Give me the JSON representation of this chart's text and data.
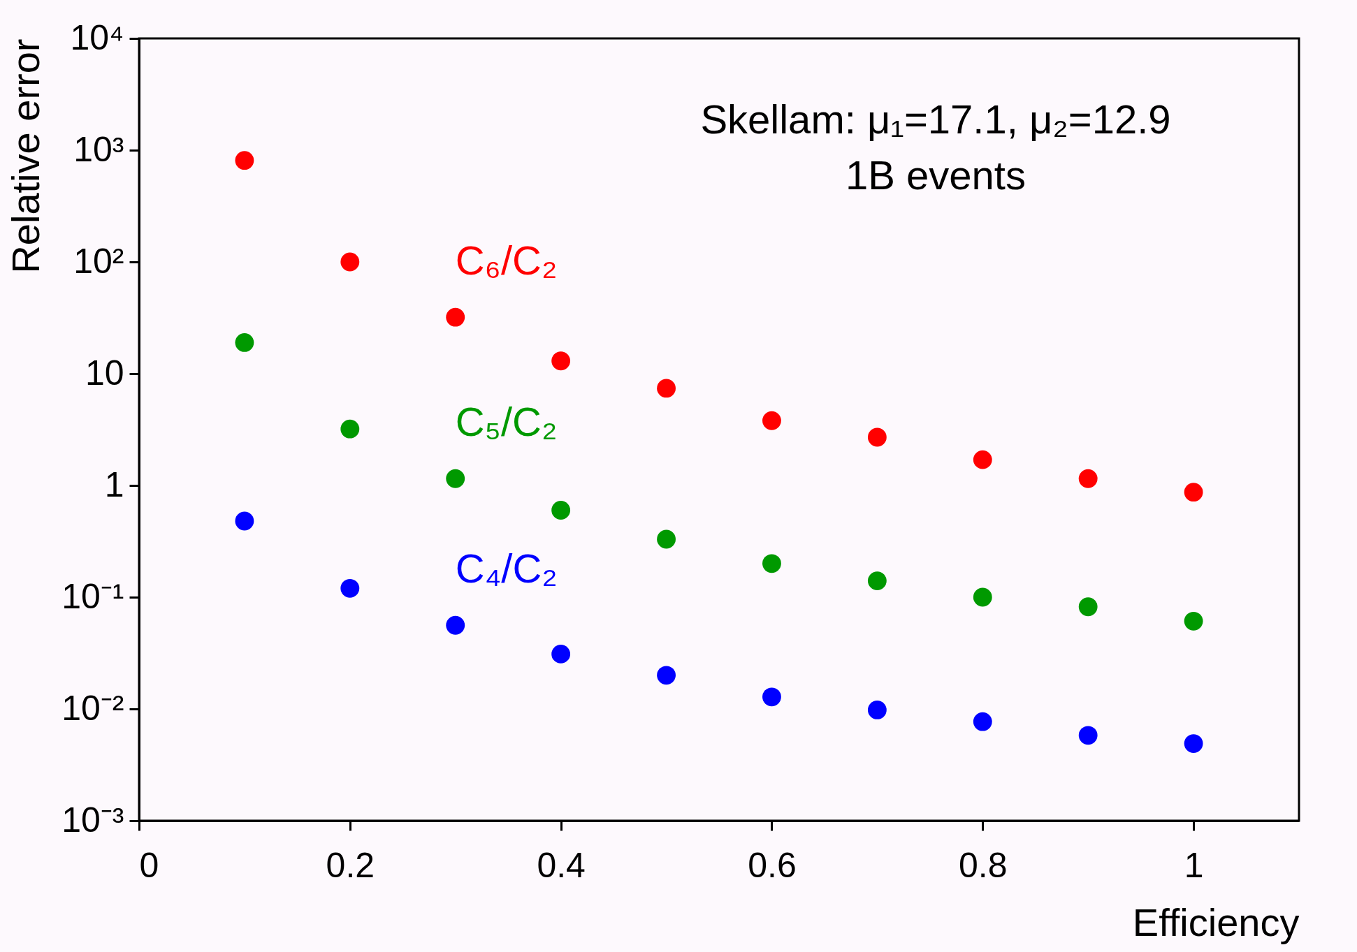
{
  "chart_data": {
    "type": "scatter",
    "xlabel": "Efficiency",
    "ylabel": "Relative error",
    "x": [
      0.1,
      0.2,
      0.3,
      0.4,
      0.5,
      0.6,
      0.7,
      0.8,
      0.9,
      1.0
    ],
    "series": [
      {
        "name": "C₆/C₂",
        "color": "#ff0000",
        "values": [
          810,
          100,
          32,
          13,
          7.4,
          3.8,
          2.7,
          1.7,
          1.15,
          0.87
        ]
      },
      {
        "name": "C₅/C₂",
        "color": "#009900",
        "values": [
          19,
          3.2,
          1.15,
          0.6,
          0.33,
          0.2,
          0.14,
          0.1,
          0.082,
          0.061
        ]
      },
      {
        "name": "C₄/C₂",
        "color": "#0000ff",
        "values": [
          0.48,
          0.12,
          0.056,
          0.031,
          0.02,
          0.0128,
          0.0098,
          0.0077,
          0.0058,
          0.0049
        ]
      }
    ],
    "xlim": [
      0,
      1.1
    ],
    "xticks": [
      0,
      0.2,
      0.4,
      0.6,
      0.8,
      1
    ],
    "ylim": [
      0.001,
      10000
    ],
    "yticks": [
      {
        "value": 0.001,
        "label": "10⁻³"
      },
      {
        "value": 0.01,
        "label": "10⁻²"
      },
      {
        "value": 0.1,
        "label": "10⁻¹"
      },
      1,
      10,
      {
        "value": 100,
        "label": "10²"
      },
      {
        "value": 1000,
        "label": "10³"
      },
      {
        "value": 10000,
        "label": "10⁴"
      }
    ],
    "log": true,
    "grid": false,
    "legend": false,
    "marker": "circle",
    "annotations": [
      "Skellam: μ₁=17.1, μ₂=12.9",
      "1B events"
    ]
  }
}
